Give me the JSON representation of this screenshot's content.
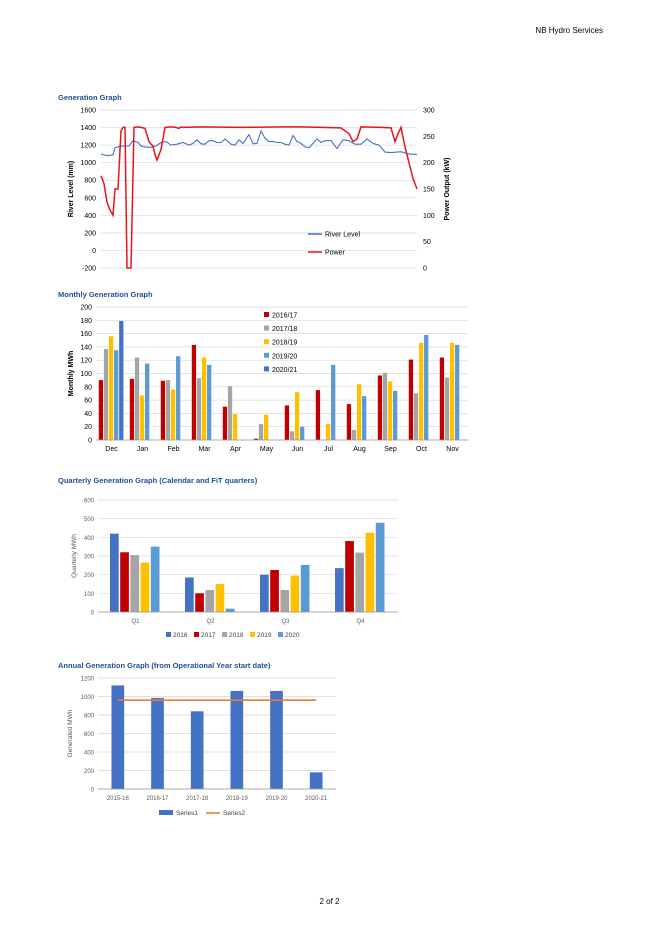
{
  "header": {
    "company": "NB Hydro Services"
  },
  "footer": {
    "page": "2 of 2"
  },
  "sections": {
    "generation": {
      "title": "Generation Graph"
    },
    "monthly": {
      "title": "Monthly Generation Graph"
    },
    "quarterly": {
      "title": "Quarterly Generation Graph (Calendar and FiT quarters)"
    },
    "annual": {
      "title": "Annual Generation Graph (from Operational Year start date)"
    }
  },
  "chart_data": [
    {
      "type": "line",
      "ylabel": "River Level (mm)",
      "y2label": "Power Output (kW)",
      "ylim": [
        -200,
        1600
      ],
      "y2lim": [
        0,
        300
      ],
      "yticks": [
        -200,
        0,
        200,
        400,
        600,
        800,
        1000,
        1200,
        1400,
        1600
      ],
      "y2ticks": [
        0,
        50,
        100,
        150,
        200,
        250,
        300
      ],
      "grid": true,
      "legend": "bottom-right",
      "series": [
        {
          "name": "River Level",
          "axis": "left",
          "color": "#4472c4",
          "x": [
            0,
            4,
            8,
            12,
            14,
            17,
            22,
            28,
            32,
            37,
            40,
            44,
            48,
            52,
            55,
            60,
            65,
            70,
            76,
            82,
            88,
            92,
            96,
            100,
            104,
            108,
            112,
            116,
            120,
            124,
            130,
            134,
            138,
            142,
            148,
            152,
            156,
            160,
            164,
            168,
            172,
            176,
            180,
            184,
            188,
            192,
            196,
            200,
            204,
            208,
            212,
            216,
            220,
            224,
            230,
            236,
            242,
            248,
            254,
            260,
            266,
            272,
            278,
            284,
            290,
            296,
            300,
            304,
            308,
            314,
            316
          ],
          "y": [
            1100,
            1085,
            1080,
            1090,
            1170,
            1180,
            1190,
            1190,
            1250,
            1230,
            1190,
            1180,
            1175,
            1180,
            1190,
            1230,
            1240,
            1200,
            1210,
            1230,
            1200,
            1220,
            1260,
            1215,
            1210,
            1250,
            1250,
            1230,
            1230,
            1270,
            1210,
            1200,
            1260,
            1220,
            1320,
            1215,
            1220,
            1360,
            1280,
            1240,
            1240,
            1230,
            1230,
            1210,
            1200,
            1310,
            1240,
            1220,
            1180,
            1170,
            1220,
            1270,
            1230,
            1250,
            1250,
            1160,
            1260,
            1250,
            1210,
            1210,
            1270,
            1220,
            1200,
            1120,
            1115,
            1120,
            1125,
            1110,
            1100,
            1095,
            1090
          ]
        },
        {
          "name": "Power",
          "axis": "right",
          "color": "#e8141a",
          "x": [
            0,
            3,
            6,
            9,
            12,
            14,
            17,
            20,
            22,
            24,
            26,
            27,
            28,
            29,
            30,
            33,
            36,
            40,
            44,
            48,
            50,
            52,
            54,
            56,
            60,
            64,
            70,
            75,
            78,
            80,
            82,
            100,
            140,
            180,
            200,
            220,
            240,
            248,
            252,
            256,
            260,
            280,
            290,
            294,
            297,
            300,
            304,
            308,
            312,
            316
          ],
          "y": [
            175,
            160,
            125,
            110,
            100,
            150,
            150,
            260,
            267,
            267,
            0,
            0,
            0,
            0,
            0,
            267,
            268,
            267,
            265,
            240,
            235,
            232,
            215,
            205,
            225,
            267,
            268,
            267,
            265,
            268,
            267,
            268,
            267,
            268,
            268,
            267,
            266,
            255,
            240,
            245,
            268,
            267,
            266,
            240,
            255,
            267,
            230,
            200,
            170,
            150
          ]
        }
      ]
    },
    {
      "type": "bar",
      "ylabel": "Monthly MWh",
      "ylim": [
        0,
        200
      ],
      "yticks": [
        0,
        20,
        40,
        60,
        80,
        100,
        120,
        140,
        160,
        180,
        200
      ],
      "grid": true,
      "legend": "top-center",
      "categories": [
        "Dec",
        "Jan",
        "Feb",
        "Mar",
        "Apr",
        "May",
        "Jun",
        "Jul",
        "Aug",
        "Sep",
        "Oct",
        "Nov"
      ],
      "series": [
        {
          "name": "2016/17",
          "color": "#c00000",
          "values": [
            90,
            92,
            89,
            143,
            50,
            2,
            52,
            75,
            54,
            97,
            121,
            124
          ]
        },
        {
          "name": "2017/18",
          "color": "#a5a5a5",
          "values": [
            137,
            124,
            90,
            93,
            81,
            24,
            13,
            0,
            15,
            101,
            70,
            94
          ]
        },
        {
          "name": "2018/19",
          "color": "#ffc000",
          "values": [
            156,
            67,
            76,
            124,
            39,
            38,
            72,
            24,
            84,
            88,
            146,
            146
          ]
        },
        {
          "name": "2019/20",
          "color": "#5b9bd5",
          "values": [
            135,
            115,
            126,
            113,
            0,
            0,
            20,
            113,
            66,
            74,
            158,
            143
          ]
        },
        {
          "name": "2020/21",
          "color": "#4472c4",
          "values": [
            179,
            0,
            0,
            0,
            0,
            0,
            0,
            0,
            0,
            0,
            0,
            0
          ]
        }
      ]
    },
    {
      "type": "bar",
      "ylabel": "Quarterly MWh",
      "ylim": [
        0,
        600
      ],
      "yticks": [
        0,
        100,
        200,
        300,
        400,
        500,
        600
      ],
      "grid": true,
      "legend": "bottom",
      "categories": [
        "Q1",
        "Q2",
        "Q3",
        "Q4"
      ],
      "series": [
        {
          "name": "2016",
          "color": "#4472c4",
          "values": [
            420,
            185,
            200,
            235
          ]
        },
        {
          "name": "2017",
          "color": "#c00000",
          "values": [
            320,
            100,
            225,
            380
          ]
        },
        {
          "name": "2018",
          "color": "#a5a5a5",
          "values": [
            305,
            118,
            118,
            318
          ]
        },
        {
          "name": "2019",
          "color": "#ffc000",
          "values": [
            265,
            150,
            195,
            425
          ]
        },
        {
          "name": "2020",
          "color": "#5b9bd5",
          "values": [
            350,
            18,
            252,
            478
          ]
        }
      ]
    },
    {
      "type": "bar",
      "ylabel": "Generated MWh",
      "ylim": [
        0,
        1200
      ],
      "yticks": [
        0,
        200,
        400,
        600,
        800,
        1000,
        1200
      ],
      "grid": true,
      "legend": "bottom",
      "categories": [
        "2015-16",
        "2016-17",
        "2017-18",
        "2018-19",
        "2019-20",
        "2020-21"
      ],
      "series": [
        {
          "name": "Series1",
          "color": "#4472c4",
          "values": [
            1120,
            985,
            840,
            1060,
            1060,
            180
          ]
        },
        {
          "name": "Series2",
          "color": "#ed7d31",
          "type": "line",
          "values": [
            960,
            960,
            960,
            960,
            960,
            960
          ]
        }
      ]
    }
  ]
}
